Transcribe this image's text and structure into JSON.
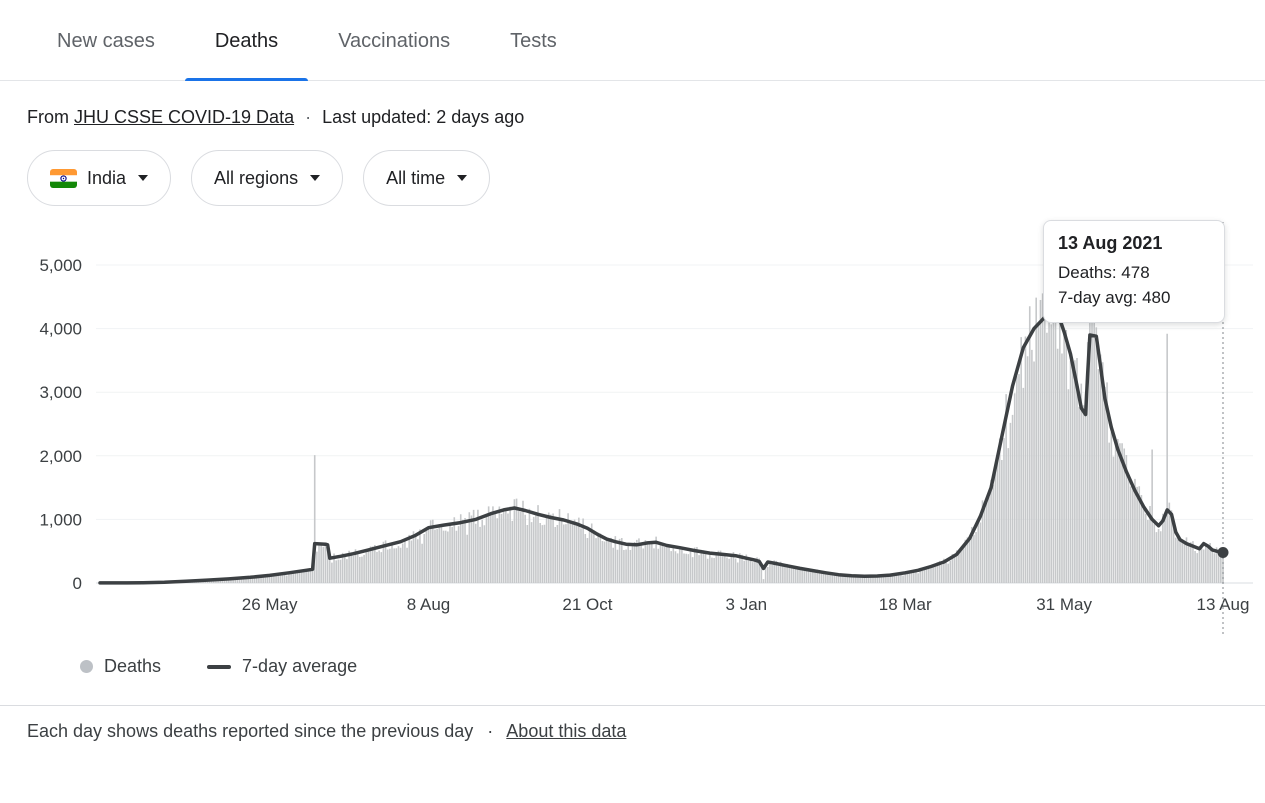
{
  "tabs": [
    {
      "label": "New cases",
      "active": false
    },
    {
      "label": "Deaths",
      "active": true
    },
    {
      "label": "Vaccinations",
      "active": false
    },
    {
      "label": "Tests",
      "active": false
    }
  ],
  "source": {
    "prefix": "From",
    "link": "JHU CSSE COVID-19 Data",
    "separator": "·",
    "updated": "Last updated: 2 days ago"
  },
  "filters": [
    {
      "label": "India",
      "icon": "india-flag"
    },
    {
      "label": "All regions"
    },
    {
      "label": "All time"
    }
  ],
  "tooltip": {
    "title": "13 Aug 2021",
    "deaths": "Deaths: 478",
    "avg": "7-day avg: 480"
  },
  "legend": [
    {
      "label": "Deaths",
      "swatch": "dot"
    },
    {
      "label": "7-day average",
      "swatch": "line"
    }
  ],
  "footer": {
    "text": "Each day shows deaths reported since the previous day",
    "separator": "·",
    "link": "About this data"
  },
  "colors": {
    "accent_blue": "#1a73e8",
    "bar_gray": "#c6c8ca",
    "line_dark": "#3c4043",
    "border_gray": "#dadce0",
    "flag_saffron": "#ff9933",
    "flag_green": "#138808",
    "flag_navy": "#000088"
  },
  "chart_data": {
    "type": "bar",
    "region": "India",
    "metric": "Deaths",
    "highlighted_point": {
      "date": "13 Aug 2021",
      "deaths": 478,
      "avg_7day": 480
    },
    "x_axis": {
      "total_days": 523,
      "ticks": [
        {
          "day": 79,
          "label": "26 May"
        },
        {
          "day": 153,
          "label": "8 Aug"
        },
        {
          "day": 227,
          "label": "21 Oct"
        },
        {
          "day": 301,
          "label": "3 Jan"
        },
        {
          "day": 375,
          "label": "18 Mar"
        },
        {
          "day": 449,
          "label": "31 May"
        },
        {
          "day": 523,
          "label": "13 Aug"
        }
      ]
    },
    "y_axis": {
      "max": 5000,
      "ticks": [
        {
          "value": 0,
          "label": "0"
        },
        {
          "value": 1000,
          "label": "1,000"
        },
        {
          "value": 2000,
          "label": "2,000"
        },
        {
          "value": 3000,
          "label": "3,000"
        },
        {
          "value": 4000,
          "label": "4,000"
        },
        {
          "value": 5000,
          "label": "5,000"
        }
      ]
    },
    "series": [
      {
        "name": "Deaths",
        "type": "bar",
        "color": "#c6c8ca",
        "note": "daily reported deaths; bars scatter around the 7-day average",
        "spikes": [
          [
            100,
            2010
          ],
          [
            309,
            60
          ],
          [
            438,
            4450
          ],
          [
            440,
            4520
          ],
          [
            444,
            4380
          ],
          [
            461,
            4620
          ],
          [
            463,
            4400
          ],
          [
            490,
            2100
          ],
          [
            497,
            3920
          ],
          [
            523,
            478
          ]
        ]
      },
      {
        "name": "7-day average",
        "type": "line",
        "color": "#3c4043",
        "points": [
          [
            0,
            1
          ],
          [
            10,
            2
          ],
          [
            20,
            5
          ],
          [
            30,
            12
          ],
          [
            40,
            28
          ],
          [
            50,
            45
          ],
          [
            60,
            65
          ],
          [
            70,
            90
          ],
          [
            79,
            120
          ],
          [
            88,
            160
          ],
          [
            96,
            200
          ],
          [
            99,
            215
          ],
          [
            100,
            620
          ],
          [
            105,
            610
          ],
          [
            106,
            600
          ],
          [
            107,
            390
          ],
          [
            112,
            420
          ],
          [
            118,
            460
          ],
          [
            125,
            520
          ],
          [
            132,
            580
          ],
          [
            140,
            650
          ],
          [
            147,
            750
          ],
          [
            153,
            870
          ],
          [
            160,
            910
          ],
          [
            168,
            950
          ],
          [
            175,
            1000
          ],
          [
            182,
            1090
          ],
          [
            188,
            1150
          ],
          [
            193,
            1180
          ],
          [
            198,
            1140
          ],
          [
            204,
            1080
          ],
          [
            210,
            1030
          ],
          [
            216,
            990
          ],
          [
            222,
            930
          ],
          [
            227,
            860
          ],
          [
            232,
            760
          ],
          [
            236,
            690
          ],
          [
            240,
            650
          ],
          [
            245,
            610
          ],
          [
            250,
            600
          ],
          [
            255,
            630
          ],
          [
            259,
            640
          ],
          [
            264,
            590
          ],
          [
            270,
            555
          ],
          [
            277,
            510
          ],
          [
            284,
            470
          ],
          [
            290,
            450
          ],
          [
            296,
            430
          ],
          [
            301,
            390
          ],
          [
            305,
            360
          ],
          [
            307,
            340
          ],
          [
            309,
            230
          ],
          [
            311,
            330
          ],
          [
            315,
            305
          ],
          [
            320,
            270
          ],
          [
            326,
            230
          ],
          [
            332,
            195
          ],
          [
            338,
            160
          ],
          [
            344,
            130
          ],
          [
            350,
            115
          ],
          [
            356,
            105
          ],
          [
            362,
            110
          ],
          [
            368,
            125
          ],
          [
            375,
            160
          ],
          [
            381,
            200
          ],
          [
            387,
            260
          ],
          [
            393,
            330
          ],
          [
            399,
            450
          ],
          [
            405,
            700
          ],
          [
            410,
            1050
          ],
          [
            415,
            1500
          ],
          [
            420,
            2300
          ],
          [
            425,
            3100
          ],
          [
            430,
            3700
          ],
          [
            435,
            4000
          ],
          [
            440,
            4180
          ],
          [
            444,
            4220
          ],
          [
            447,
            4150
          ],
          [
            449,
            3950
          ],
          [
            452,
            3600
          ],
          [
            455,
            3100
          ],
          [
            457,
            2750
          ],
          [
            459,
            2650
          ],
          [
            460,
            3300
          ],
          [
            461,
            3900
          ],
          [
            464,
            3880
          ],
          [
            466,
            3400
          ],
          [
            468,
            2900
          ],
          [
            471,
            2450
          ],
          [
            474,
            2100
          ],
          [
            478,
            1750
          ],
          [
            482,
            1450
          ],
          [
            486,
            1200
          ],
          [
            490,
            1000
          ],
          [
            493,
            900
          ],
          [
            495,
            980
          ],
          [
            497,
            1150
          ],
          [
            499,
            1080
          ],
          [
            501,
            800
          ],
          [
            503,
            680
          ],
          [
            506,
            620
          ],
          [
            509,
            580
          ],
          [
            512,
            540
          ],
          [
            514,
            620
          ],
          [
            516,
            580
          ],
          [
            518,
            520
          ],
          [
            520,
            500
          ],
          [
            523,
            480
          ]
        ]
      }
    ]
  }
}
